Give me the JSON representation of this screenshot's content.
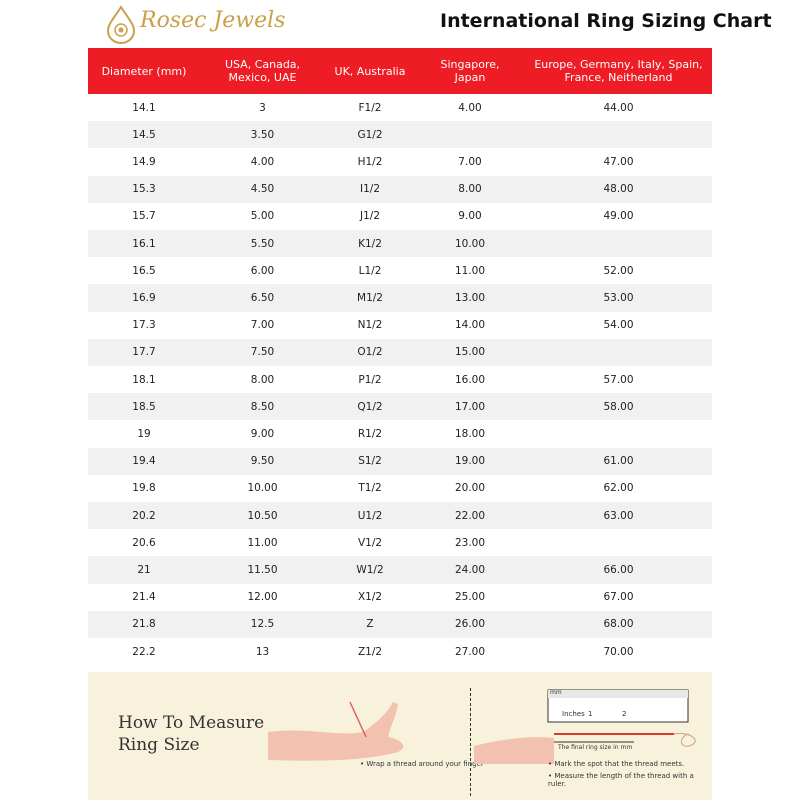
{
  "header": {
    "brand": "Rosec Jewels",
    "title": "International Ring Sizing Chart"
  },
  "table": {
    "columns": [
      "Diameter (mm)",
      "USA, Canada,\nMexico, UAE",
      "UK, Australia",
      "Singapore,\nJapan",
      "Europe, Germany, Italy, Spain,\nFrance, Neitherland"
    ],
    "rows": [
      [
        "14.1",
        "3",
        "F1/2",
        "4.00",
        "44.00"
      ],
      [
        "14.5",
        "3.50",
        "G1/2",
        null,
        null
      ],
      [
        "14.9",
        "4.00",
        "H1/2",
        "7.00",
        "47.00"
      ],
      [
        "15.3",
        "4.50",
        "I1/2",
        "8.00",
        "48.00"
      ],
      [
        "15.7",
        "5.00",
        "J1/2",
        "9.00",
        "49.00"
      ],
      [
        "16.1",
        "5.50",
        "K1/2",
        "10.00",
        null
      ],
      [
        "16.5",
        "6.00",
        "L1/2",
        "11.00",
        "52.00"
      ],
      [
        "16.9",
        "6.50",
        "M1/2",
        "13.00",
        "53.00"
      ],
      [
        "17.3",
        "7.00",
        "N1/2",
        "14.00",
        "54.00"
      ],
      [
        "17.7",
        "7.50",
        "O1/2",
        "15.00",
        null
      ],
      [
        "18.1",
        "8.00",
        "P1/2",
        "16.00",
        "57.00"
      ],
      [
        "18.5",
        "8.50",
        "Q1/2",
        "17.00",
        "58.00"
      ],
      [
        "19",
        "9.00",
        "R1/2",
        "18.00",
        null
      ],
      [
        "19.4",
        "9.50",
        "S1/2",
        "19.00",
        "61.00"
      ],
      [
        "19.8",
        "10.00",
        "T1/2",
        "20.00",
        "62.00"
      ],
      [
        "20.2",
        "10.50",
        "U1/2",
        "22.00",
        "63.00"
      ],
      [
        "20.6",
        "11.00",
        "V1/2",
        "23.00",
        null
      ],
      [
        "21",
        "11.50",
        "W1/2",
        "24.00",
        "66.00"
      ],
      [
        "21.4",
        "12.00",
        "X1/2",
        "25.00",
        "67.00"
      ],
      [
        "21.8",
        "12.5",
        "Z",
        "26.00",
        "68.00"
      ],
      [
        "22.2",
        "13",
        "Z1/2",
        "27.00",
        "70.00"
      ]
    ]
  },
  "measure": {
    "title_lines": [
      "How To Measure",
      "Ring Size"
    ],
    "step_wrap": "• Wrap a thread around your finger",
    "ruler_unit_mm": "mm",
    "ruler_unit_inches": "Inches",
    "ruler_inch_1": "1",
    "ruler_inch_2": "2",
    "ruler_caption": "The final ring size in mm",
    "steps_measure": [
      "• Mark the spot that the thread meets.",
      "• Measure the length of the thread with a ruler."
    ]
  }
}
